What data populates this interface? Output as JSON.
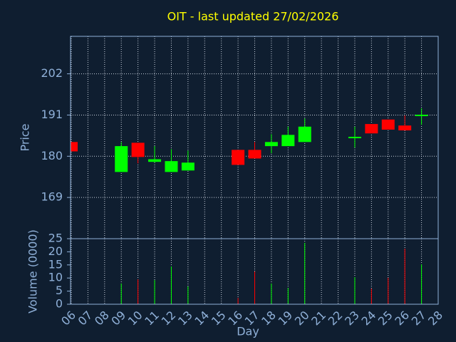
{
  "chart_data": {
    "type": "candlestick",
    "title": "OIT - last updated 27/02/2026",
    "y_label": "Price",
    "x_label": "Day",
    "volume_label": "Volume (0000)",
    "categories": [
      "06",
      "07",
      "08",
      "09",
      "10",
      "11",
      "12",
      "13",
      "14",
      "15",
      "16",
      "17",
      "18",
      "19",
      "20",
      "21",
      "22",
      "23",
      "24",
      "25",
      "26",
      "27",
      "28"
    ],
    "open": [
      183.8,
      null,
      null,
      175.8,
      183.6,
      178.5,
      175.8,
      176.2,
      null,
      null,
      181.7,
      181.7,
      182.7,
      182.7,
      183.8,
      null,
      null,
      185.0,
      188.6,
      189.8,
      188.2,
      190.9,
      null
    ],
    "high": [
      183.8,
      null,
      null,
      183.8,
      183.6,
      182.7,
      181.9,
      181.5,
      null,
      null,
      181.7,
      183.8,
      185.9,
      187.9,
      190.1,
      null,
      null,
      187.9,
      188.6,
      189.8,
      190.9,
      192.8,
      null
    ],
    "low": [
      181.3,
      null,
      null,
      175.8,
      178.1,
      178.3,
      175.8,
      176.2,
      null,
      null,
      177.7,
      179.4,
      180.8,
      182.7,
      183.8,
      null,
      null,
      182.3,
      186.1,
      187.1,
      186.9,
      188.4,
      null
    ],
    "close": [
      181.3,
      null,
      null,
      182.7,
      179.8,
      179.2,
      178.7,
      178.3,
      null,
      null,
      177.7,
      179.4,
      183.8,
      185.7,
      187.9,
      null,
      null,
      185.0,
      186.1,
      187.1,
      186.9,
      190.9,
      null
    ],
    "volume": [
      null,
      null,
      null,
      7.9,
      9.5,
      9.2,
      14.4,
      6.8,
      null,
      null,
      2.4,
      12.5,
      7.9,
      6.2,
      23.4,
      null,
      null,
      10.3,
      6.0,
      10.1,
      21.2,
      15.2,
      null
    ],
    "ylim": [
      158,
      212
    ],
    "yticks": [
      169,
      180,
      191,
      202
    ],
    "volume_ylim": [
      0,
      25
    ],
    "volume_yticks": [
      0,
      5,
      10,
      15,
      20,
      25
    ],
    "up_color": "#00ff00",
    "down_color": "#ff0000",
    "grid": true
  }
}
